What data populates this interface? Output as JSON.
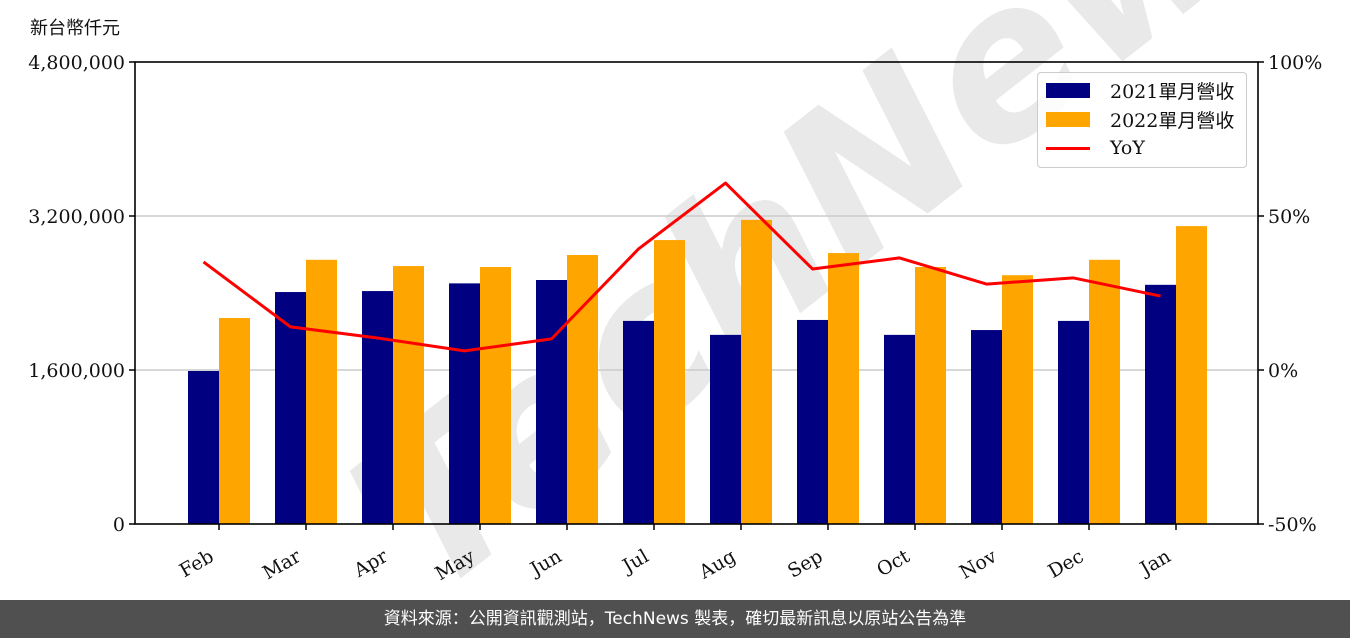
{
  "chart_data": {
    "type": "bar",
    "title": "",
    "xlabel": "",
    "ylabel": "新台幣仟元",
    "y2label": "",
    "categories": [
      "Feb",
      "Mar",
      "Apr",
      "May",
      "Jun",
      "Jul",
      "Aug",
      "Sep",
      "Oct",
      "Nov",
      "Dec",
      "Jan"
    ],
    "series": [
      {
        "name": "2021單月營收",
        "type": "bar",
        "axis": "left",
        "color": "#000080",
        "values": [
          1590000,
          2410000,
          2420000,
          2500000,
          2535000,
          2110000,
          1965000,
          2120000,
          1965000,
          2015000,
          2110000,
          2485000
        ]
      },
      {
        "name": "2022單月營收",
        "type": "bar",
        "axis": "left",
        "color": "#FFA500",
        "values": [
          2140000,
          2745000,
          2680000,
          2670000,
          2795000,
          2950000,
          3160000,
          2815000,
          2670000,
          2585000,
          2745000,
          3095000
        ]
      },
      {
        "name": "YoY",
        "type": "line",
        "axis": "right",
        "color": "#FF0000",
        "values": [
          35.1,
          14.0,
          10.4,
          6.2,
          10.1,
          39.3,
          60.7,
          32.8,
          36.4,
          27.9,
          29.9,
          24.0
        ]
      }
    ],
    "ylim": [
      0,
      4800000
    ],
    "y2lim": [
      -50,
      100
    ],
    "yticks": [
      "0",
      "1,600,000",
      "3,200,000",
      "4,800,000"
    ],
    "y2ticks": [
      "-50%",
      "0%",
      "50%",
      "100%"
    ],
    "grid": "horizontal",
    "legend_position": "upper right"
  },
  "legend": [
    {
      "label": "2021單月營收",
      "color": "#000080",
      "kind": "bar"
    },
    {
      "label": "2022單月營收",
      "color": "#FFA500",
      "kind": "bar"
    },
    {
      "label": "YoY",
      "color": "#FF0000",
      "kind": "line"
    }
  ],
  "unit_label": "新台幣仟元",
  "watermark": "TechNews",
  "footer": "資料來源：公開資訊觀測站，TechNews 製表，確切最新訊息以原站公告為準"
}
